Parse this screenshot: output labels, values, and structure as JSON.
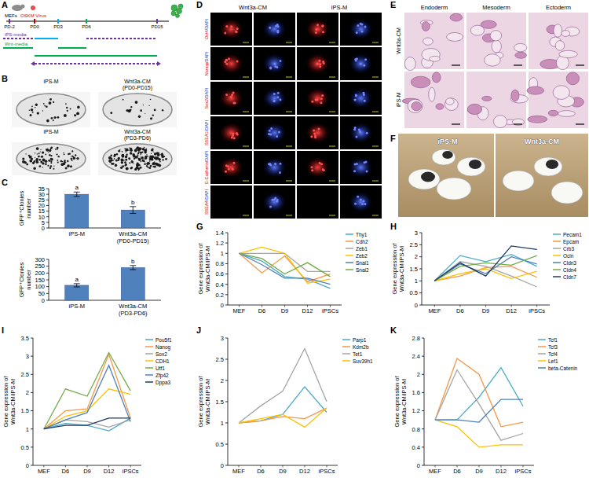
{
  "panel_labels": [
    "A",
    "B",
    "C",
    "D",
    "E",
    "F",
    "G",
    "H",
    "I",
    "J",
    "K"
  ],
  "timeline": {
    "start": "MEFs",
    "treatment": "OSKM Virus",
    "points": [
      "PD-2",
      "PD0",
      "PD3",
      "PD6",
      "PD15"
    ],
    "media": [
      "iPS-media",
      "Wnt-media"
    ]
  },
  "colonies": {
    "rows": [
      {
        "left": "iPS-M",
        "right": "Wnt3a-CM (PD0-PD15)"
      },
      {
        "left": "iPS-M",
        "right": "Wnt3a-CM (PD3-PD6)"
      }
    ]
  },
  "immunostaining": {
    "groups": [
      "Wnt3a-CM",
      "iPS-M"
    ],
    "rows": [
      "Oct4/DAPI",
      "Nanog/DAPI",
      "Sox2/DAPI",
      "SSEA1/DAPI",
      "E-Cadherin/DAPI",
      "SSEA4/DAPI"
    ]
  },
  "teratoma": {
    "columns": [
      "Endoderm",
      "Mesoderm",
      "Ectoderm"
    ],
    "rows": [
      "Wnt3a-CM",
      "iPS-M"
    ]
  },
  "chimeras": {
    "labels": [
      "iPS-M",
      "Wnt3a-CM"
    ]
  },
  "chart_data": [
    {
      "type": "bar",
      "y_label": "GFP⁺Clonies number",
      "categories": [
        "iPS-M",
        "Wnt3a-CM (PD0-PD15)"
      ],
      "values": [
        30,
        16
      ],
      "errors": [
        2,
        3
      ],
      "annotations": [
        "a",
        "b"
      ],
      "color": "#4f81bd",
      "ylim": [
        0,
        35
      ],
      "yticks": [
        0,
        5,
        10,
        15,
        20,
        25,
        30,
        35
      ]
    },
    {
      "type": "bar",
      "y_label": "GFP⁺Clonies number",
      "categories": [
        "iPS-M",
        "Wnt3a-CM (PD3-PD6)"
      ],
      "values": [
        110,
        240
      ],
      "errors": [
        12,
        15
      ],
      "annotations": [
        "a",
        "b"
      ],
      "color": "#4f81bd",
      "ylim": [
        0,
        300
      ],
      "yticks": [
        0,
        50,
        100,
        150,
        200,
        250,
        300
      ]
    },
    {
      "type": "line",
      "y_label": "Gene expression of Wnt3a-CM/iPS-M",
      "categories": [
        "MEF",
        "D6",
        "D9",
        "D12",
        "iPSCs"
      ],
      "legend": "right",
      "ylim": [
        0,
        1.4
      ],
      "yticks": [
        0,
        0.2,
        0.4,
        0.6,
        0.8,
        1,
        1.2,
        1.4
      ],
      "series": [
        {
          "name": "Thy1",
          "color": "#4bacc6",
          "values": [
            1,
            0.85,
            0.55,
            0.5,
            0.32
          ]
        },
        {
          "name": "Cdh2",
          "color": "#f79646",
          "values": [
            1,
            0.62,
            0.95,
            0.45,
            0.6
          ]
        },
        {
          "name": "Zeb1",
          "color": "#a5a5a5",
          "values": [
            1,
            1.0,
            1.0,
            0.65,
            0.65
          ]
        },
        {
          "name": "Zeb2",
          "color": "#ffc000",
          "values": [
            1,
            1.12,
            1.0,
            0.42,
            0.5
          ]
        },
        {
          "name": "Snai1",
          "color": "#4f81bd",
          "values": [
            1,
            0.78,
            0.52,
            0.52,
            0.4
          ]
        },
        {
          "name": "Snai2",
          "color": "#70ad47",
          "values": [
            1,
            0.9,
            0.6,
            0.82,
            0.55
          ]
        }
      ]
    },
    {
      "type": "line",
      "y_label": "Gene expression of Wnt3a-CM/iPS-M",
      "categories": [
        "MEF",
        "D6",
        "D9",
        "D12",
        "iPSCs"
      ],
      "legend": "right",
      "ylim": [
        0,
        3
      ],
      "yticks": [
        0,
        0.5,
        1,
        1.5,
        2,
        2.5,
        3
      ],
      "series": [
        {
          "name": "Pecam1",
          "color": "#4bacc6",
          "values": [
            1,
            2.05,
            1.8,
            2.1,
            1.6
          ]
        },
        {
          "name": "Epcam",
          "color": "#f79646",
          "values": [
            1,
            1.2,
            1.55,
            1.6,
            1.15
          ]
        },
        {
          "name": "Crb3",
          "color": "#a5a5a5",
          "values": [
            1,
            1.8,
            1.6,
            1.2,
            0.75
          ]
        },
        {
          "name": "Ocln",
          "color": "#ffc000",
          "values": [
            1,
            1.3,
            1.5,
            1.1,
            1.4
          ]
        },
        {
          "name": "Cldn3",
          "color": "#4f81bd",
          "values": [
            1,
            1.7,
            1.3,
            2.0,
            1.7
          ]
        },
        {
          "name": "Cldn4",
          "color": "#70ad47",
          "values": [
            1,
            1.6,
            1.75,
            1.65,
            2.05
          ]
        },
        {
          "name": "Cldn7",
          "color": "#1f3864",
          "values": [
            1,
            1.75,
            1.2,
            2.45,
            2.3
          ]
        }
      ]
    },
    {
      "type": "line",
      "y_label": "Gene expression of Wnt3a-CM/iPS-M",
      "categories": [
        "MEF",
        "D6",
        "D9",
        "D12",
        "iPSCs"
      ],
      "legend": "right",
      "ylim": [
        0,
        3.5
      ],
      "yticks": [
        0,
        0.5,
        1,
        1.5,
        2,
        2.5,
        3,
        3.5
      ],
      "series": [
        {
          "name": "Pou5f1",
          "color": "#4bacc6",
          "values": [
            1,
            1.15,
            1.1,
            0.95,
            1.3
          ]
        },
        {
          "name": "Nanog",
          "color": "#f79646",
          "values": [
            1,
            1.5,
            1.55,
            3.05,
            1.3
          ]
        },
        {
          "name": "Sox2",
          "color": "#a5a5a5",
          "values": [
            1,
            1.25,
            1.2,
            1.05,
            1.25
          ]
        },
        {
          "name": "CDH1",
          "color": "#ffc000",
          "values": [
            1,
            1.35,
            1.5,
            2.1,
            1.95
          ]
        },
        {
          "name": "Utf1",
          "color": "#70ad47",
          "values": [
            1,
            2.1,
            1.9,
            3.1,
            2.05
          ]
        },
        {
          "name": "Zfp42",
          "color": "#4f81bd",
          "values": [
            1,
            1.25,
            1.45,
            2.75,
            1.2
          ]
        },
        {
          "name": "Dppa3",
          "color": "#1f3864",
          "values": [
            1,
            1.1,
            1.1,
            1.3,
            1.3
          ]
        }
      ]
    },
    {
      "type": "line",
      "y_label": "Gene expression of Wnt3a-CM/iPS-M",
      "categories": [
        "MEF",
        "D6",
        "D9",
        "D12",
        "iPSCs"
      ],
      "legend": "right",
      "ylim": [
        0,
        3
      ],
      "yticks": [
        0,
        0.5,
        1,
        1.5,
        2,
        2.5,
        3
      ],
      "series": [
        {
          "name": "Parp1",
          "color": "#4bacc6",
          "values": [
            1,
            1.05,
            1.2,
            1.85,
            1.25
          ]
        },
        {
          "name": "Kdm2b",
          "color": "#f79646",
          "values": [
            1,
            1.05,
            1.15,
            1.1,
            1.35
          ]
        },
        {
          "name": "Tet1",
          "color": "#a5a5a5",
          "values": [
            1,
            1.4,
            1.75,
            2.75,
            1.5
          ]
        },
        {
          "name": "Suv39h1",
          "color": "#ffc000",
          "values": [
            1,
            1.1,
            1.2,
            0.9,
            1.35
          ]
        }
      ]
    },
    {
      "type": "line",
      "y_label": "Gene expression of Wnt3a-CM/iPS-M",
      "categories": [
        "MEF",
        "D6",
        "D9",
        "D12",
        "iPSCs"
      ],
      "legend": "right",
      "ylim": [
        0,
        2.8
      ],
      "yticks": [
        0,
        0.4,
        0.8,
        1.2,
        1.6,
        2,
        2.4,
        2.8
      ],
      "series": [
        {
          "name": "Tcf1",
          "color": "#4bacc6",
          "values": [
            1,
            1.0,
            1.5,
            2.15,
            1.3
          ]
        },
        {
          "name": "Tcf3",
          "color": "#f79646",
          "values": [
            1,
            2.35,
            2.0,
            0.85,
            0.95
          ]
        },
        {
          "name": "Tcf4",
          "color": "#a5a5a5",
          "values": [
            1,
            2.1,
            1.35,
            0.55,
            0.7
          ]
        },
        {
          "name": "Lef1",
          "color": "#ffc000",
          "values": [
            1,
            0.85,
            0.4,
            0.45,
            0.45
          ]
        },
        {
          "name": "beta-Catenin",
          "color": "#4f81bd",
          "values": [
            1,
            1.0,
            0.95,
            1.45,
            1.45
          ]
        }
      ]
    }
  ]
}
